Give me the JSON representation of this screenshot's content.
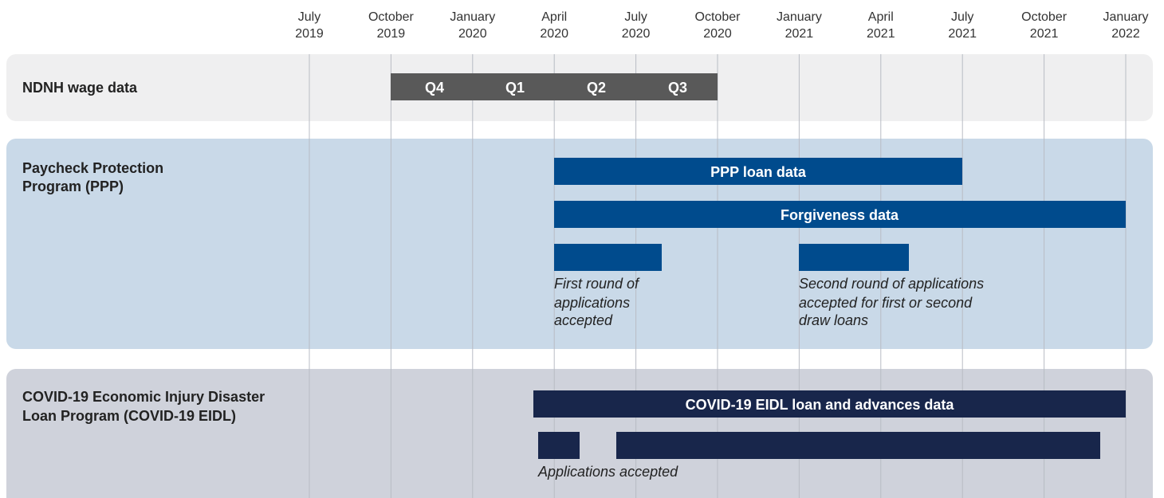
{
  "timeline_axis": [
    {
      "month": "July",
      "year": "2019"
    },
    {
      "month": "October",
      "year": "2019"
    },
    {
      "month": "January",
      "year": "2020"
    },
    {
      "month": "April",
      "year": "2020"
    },
    {
      "month": "July",
      "year": "2020"
    },
    {
      "month": "October",
      "year": "2020"
    },
    {
      "month": "January",
      "year": "2021"
    },
    {
      "month": "April",
      "year": "2021"
    },
    {
      "month": "July",
      "year": "2021"
    },
    {
      "month": "October",
      "year": "2021"
    },
    {
      "month": "January",
      "year": "2022"
    }
  ],
  "rows": [
    {
      "title": [
        "NDNH wage data"
      ],
      "segments": [
        "Q4",
        "Q1",
        "Q2",
        "Q3"
      ]
    },
    {
      "title": [
        "Paycheck Protection",
        "Program (PPP)"
      ],
      "bars": [
        "PPP loan data",
        "Forgiveness data"
      ],
      "notes": [
        [
          "First round of",
          "applications",
          "accepted"
        ],
        [
          "Second round of applications",
          "accepted for first or second",
          "draw loans"
        ]
      ]
    },
    {
      "title": [
        "COVID-19 Economic Injury Disaster",
        "Loan Program (COVID-19 EIDL)"
      ],
      "bars": [
        "COVID-19 EIDL loan and advances data"
      ],
      "note": "Applications accepted"
    }
  ]
}
